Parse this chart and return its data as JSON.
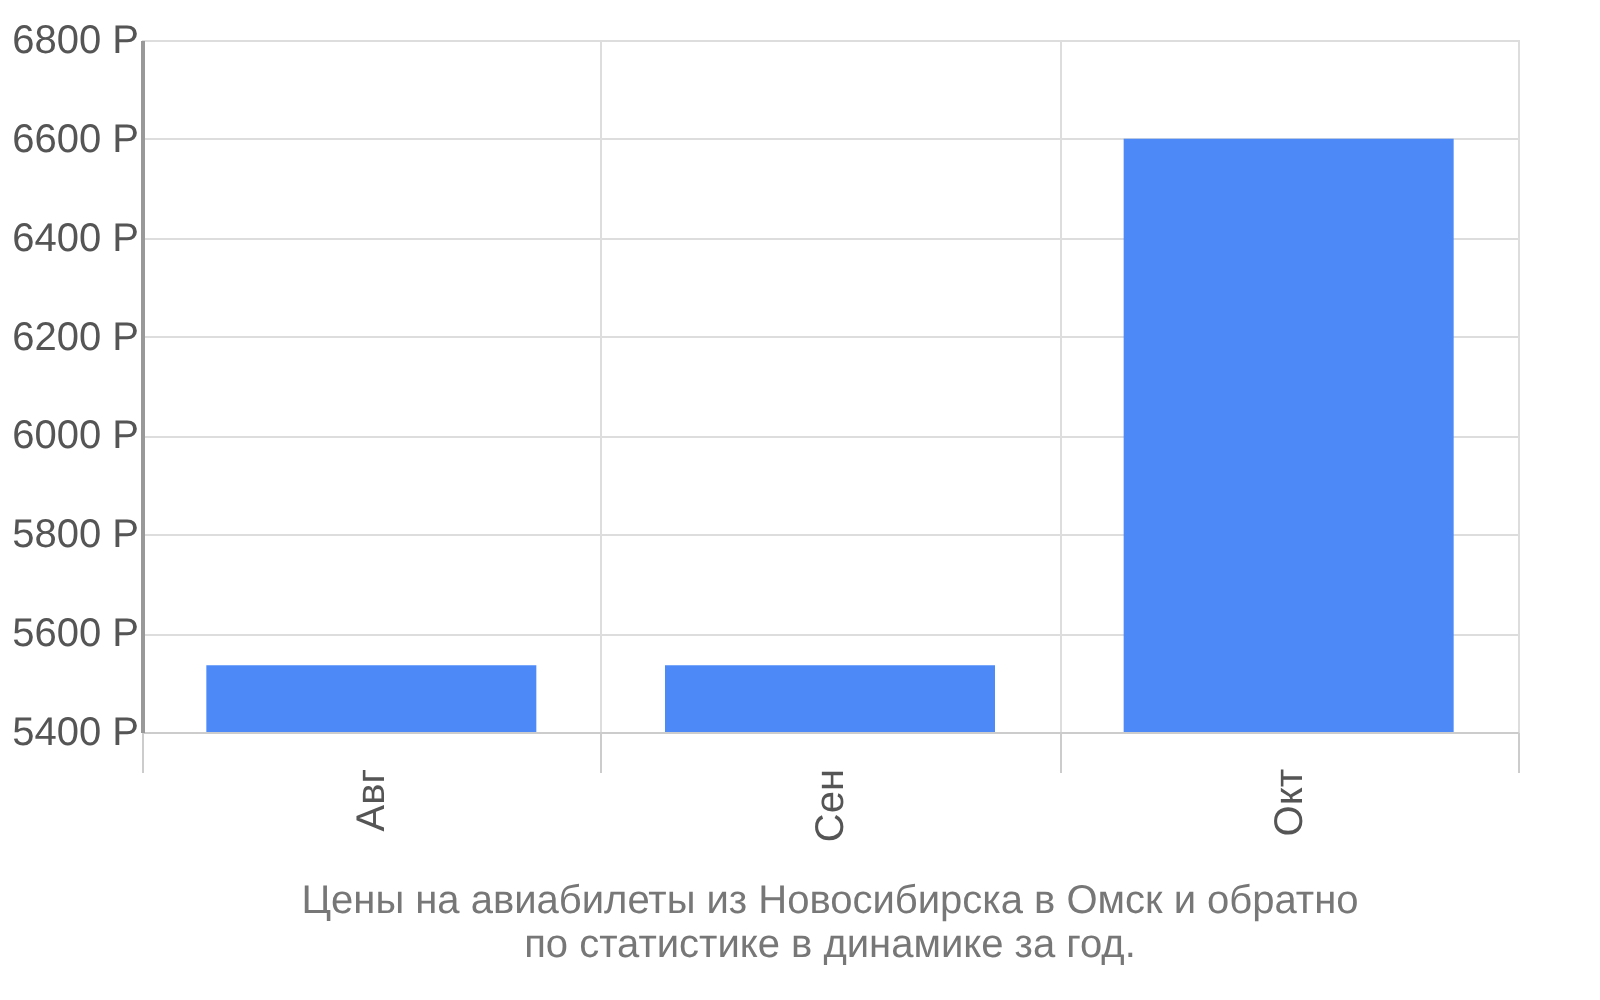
{
  "chart_data": {
    "type": "bar",
    "title": "Цены на авиабилеты из Новосибирска в Омск и обратно\nпо статистике в динамике за год.",
    "categories": [
      "Авг",
      "Сен",
      "Окт"
    ],
    "values": [
      5535,
      5535,
      6600
    ],
    "color": "#4d8af8",
    "ylim": [
      5400,
      6800
    ],
    "yticks": [
      {
        "value": 5400,
        "label": "5400 Р"
      },
      {
        "value": 5600,
        "label": "5600 Р"
      },
      {
        "value": 5800,
        "label": "5800 Р"
      },
      {
        "value": 6000,
        "label": "6000 Р"
      },
      {
        "value": 6200,
        "label": "6200 Р"
      },
      {
        "value": 6400,
        "label": "6400 Р"
      },
      {
        "value": 6600,
        "label": "6600 Р"
      },
      {
        "value": 6800,
        "label": "6800 Р"
      }
    ],
    "grid": true
  }
}
